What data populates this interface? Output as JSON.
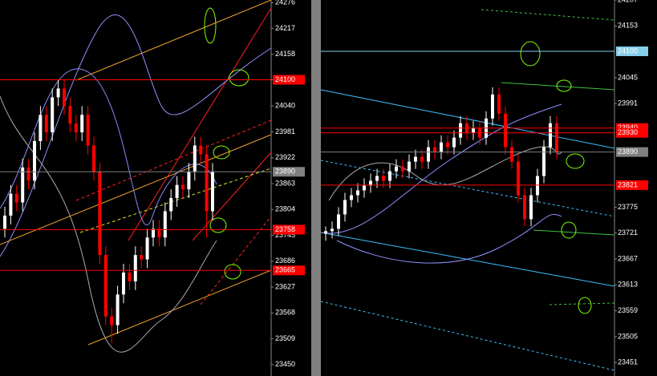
{
  "chart_data": [
    {
      "type": "candlestick",
      "ylim": [
        23424,
        24282
      ],
      "yticks": [
        24276,
        24217,
        24158,
        24100,
        24040,
        23981,
        23922,
        23863,
        23804,
        23745,
        23686,
        23627,
        23568,
        23509,
        23450
      ],
      "levels": [
        {
          "value": 24100,
          "color": "#ff0000"
        },
        {
          "value": 23890,
          "color": "#808080"
        },
        {
          "value": 23758,
          "color": "#ff0000"
        },
        {
          "value": 23665,
          "color": "#ff0000"
        }
      ],
      "up_color": "#ffffff",
      "down_color": "#ff0000",
      "open": [
        23760,
        23790,
        23840,
        23820,
        23900,
        23870,
        23960,
        24020,
        23980,
        24060,
        24080,
        24040,
        24000,
        23980,
        24020,
        23950,
        23890,
        23700,
        23560,
        23540,
        23610,
        23660,
        23640,
        23700,
        23690,
        23740,
        23760,
        23740,
        23800,
        23830,
        23860,
        23850,
        23890,
        23950,
        23930,
        23800
      ],
      "high": [
        23810,
        23860,
        23860,
        23920,
        23920,
        23980,
        24040,
        24040,
        24080,
        24100,
        24100,
        24060,
        24020,
        24040,
        24040,
        23970,
        23910,
        23720,
        23580,
        23630,
        23680,
        23680,
        23720,
        23720,
        23760,
        23780,
        23780,
        23820,
        23850,
        23880,
        23880,
        23910,
        23970,
        23970,
        23950,
        23910
      ],
      "low": [
        23740,
        23770,
        23800,
        23800,
        23850,
        23850,
        23940,
        23960,
        23960,
        24040,
        24020,
        23980,
        23960,
        23960,
        23930,
        23870,
        23680,
        23540,
        23500,
        23520,
        23590,
        23620,
        23620,
        23670,
        23670,
        23720,
        23720,
        23720,
        23780,
        23810,
        23830,
        23830,
        23870,
        23910,
        23740,
        23780
      ],
      "close": [
        23790,
        23840,
        23820,
        23900,
        23870,
        23960,
        24020,
        23980,
        24060,
        24080,
        24040,
        24000,
        23980,
        24020,
        23950,
        23890,
        23700,
        23560,
        23540,
        23610,
        23660,
        23640,
        23700,
        23690,
        23740,
        23760,
        23740,
        23800,
        23830,
        23860,
        23850,
        23890,
        23950,
        23930,
        23800,
        23890
      ]
    },
    {
      "type": "candlestick",
      "ylim": [
        23423,
        24207
      ],
      "yticks": [
        24207,
        24153,
        24045,
        23991,
        23775,
        23721,
        23667,
        23613,
        23559,
        23505,
        23451
      ],
      "levels": [
        {
          "value": 24100,
          "color": "#87ceeb"
        },
        {
          "value": 23940,
          "color": "#ff0000"
        },
        {
          "value": 23930,
          "color": "#ff0000"
        },
        {
          "value": 23890,
          "color": "#808080"
        },
        {
          "value": 23821,
          "color": "#ff0000"
        }
      ],
      "up_color": "#ffffff",
      "down_color": "#ff0000",
      "open": [
        23720,
        23725,
        23730,
        23760,
        23790,
        23800,
        23810,
        23820,
        23830,
        23840,
        23830,
        23850,
        23860,
        23850,
        23870,
        23880,
        23870,
        23900,
        23890,
        23910,
        23900,
        23920,
        23950,
        23930,
        23940,
        23920,
        23960,
        24010,
        23970,
        23900,
        23870,
        23800,
        23750,
        23800,
        23840,
        23900,
        23950
      ],
      "high": [
        23735,
        23745,
        23775,
        23805,
        23815,
        23825,
        23835,
        23845,
        23855,
        23855,
        23865,
        23875,
        23875,
        23885,
        23895,
        23895,
        23915,
        23915,
        23925,
        23925,
        23935,
        23965,
        23965,
        23955,
        23955,
        23975,
        24025,
        24025,
        23985,
        23915,
        23885,
        23815,
        23815,
        23855,
        23915,
        23965,
        23965
      ],
      "low": [
        23705,
        23710,
        23715,
        23745,
        23775,
        23785,
        23795,
        23805,
        23815,
        23815,
        23815,
        23835,
        23835,
        23835,
        23855,
        23855,
        23855,
        23875,
        23875,
        23885,
        23885,
        23905,
        23915,
        23915,
        23905,
        23905,
        23945,
        23955,
        23885,
        23855,
        23785,
        23735,
        23735,
        23785,
        23825,
        23885,
        23875
      ],
      "close": [
        23725,
        23730,
        23760,
        23790,
        23800,
        23810,
        23820,
        23830,
        23840,
        23830,
        23850,
        23860,
        23850,
        23870,
        23880,
        23870,
        23900,
        23890,
        23910,
        23900,
        23920,
        23950,
        23930,
        23940,
        23920,
        23960,
        24010,
        23970,
        23900,
        23870,
        23800,
        23750,
        23800,
        23840,
        23900,
        23950,
        23890
      ]
    }
  ]
}
